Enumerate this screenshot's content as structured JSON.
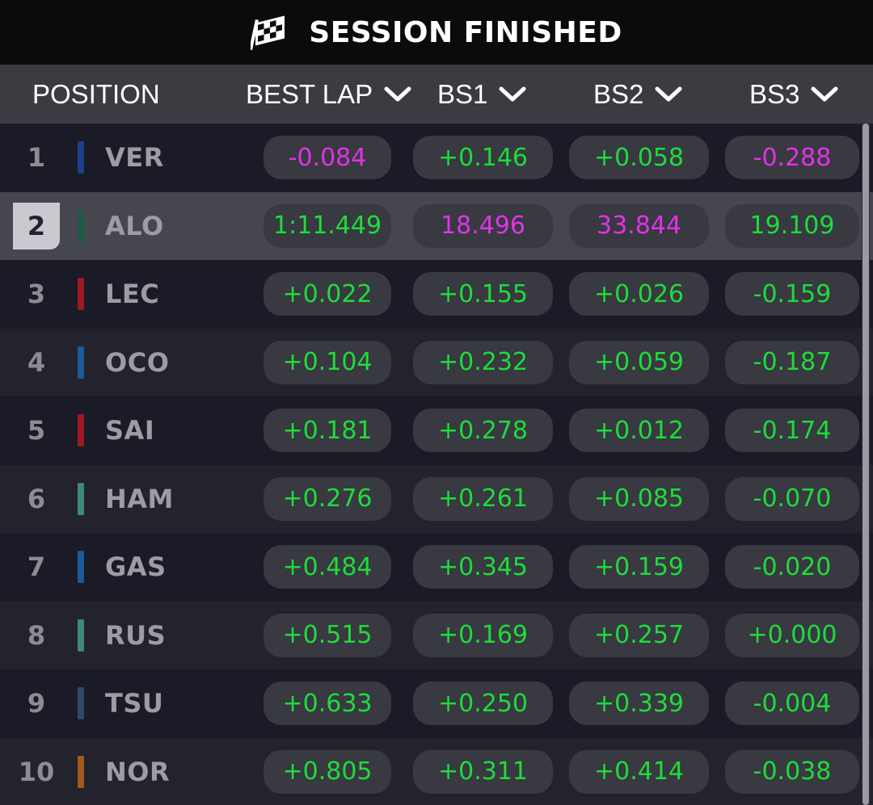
{
  "header": {
    "title": "SESSION FINISHED",
    "flag_icon": "checkered-flag-icon"
  },
  "columns": {
    "position": "POSITION",
    "best_lap": "BEST LAP",
    "bs1": "BS1",
    "bs2": "BS2",
    "bs3": "BS3"
  },
  "colors": {
    "green": "#1edc3a",
    "purple": "#e033e6",
    "selected_row": "#46464f"
  },
  "rows": [
    {
      "pos": "1",
      "driver": "VER",
      "team_color": "#1e3f8a",
      "best_lap": "-0.084",
      "bs1": "+0.146",
      "bs2": "+0.058",
      "bs3": "-0.288",
      "best_lap_color": "purple",
      "bs1_color": "green",
      "bs2_color": "green",
      "bs3_color": "purple"
    },
    {
      "pos": "2",
      "driver": "ALO",
      "team_color": "#1d5a45",
      "best_lap": "1:11.449",
      "bs1": "18.496",
      "bs2": "33.844",
      "bs3": "19.109",
      "best_lap_color": "green",
      "bs1_color": "purple",
      "bs2_color": "purple",
      "bs3_color": "green",
      "selected": true
    },
    {
      "pos": "3",
      "driver": "LEC",
      "team_color": "#a01822",
      "best_lap": "+0.022",
      "bs1": "+0.155",
      "bs2": "+0.026",
      "bs3": "-0.159",
      "best_lap_color": "green",
      "bs1_color": "green",
      "bs2_color": "green",
      "bs3_color": "green"
    },
    {
      "pos": "4",
      "driver": "OCO",
      "team_color": "#1e5a95",
      "best_lap": "+0.104",
      "bs1": "+0.232",
      "bs2": "+0.059",
      "bs3": "-0.187",
      "best_lap_color": "green",
      "bs1_color": "green",
      "bs2_color": "green",
      "bs3_color": "green"
    },
    {
      "pos": "5",
      "driver": "SAI",
      "team_color": "#a01822",
      "best_lap": "+0.181",
      "bs1": "+0.278",
      "bs2": "+0.012",
      "bs3": "-0.174",
      "best_lap_color": "green",
      "bs1_color": "green",
      "bs2_color": "green",
      "bs3_color": "green"
    },
    {
      "pos": "6",
      "driver": "HAM",
      "team_color": "#3f8a77",
      "best_lap": "+0.276",
      "bs1": "+0.261",
      "bs2": "+0.085",
      "bs3": "-0.070",
      "best_lap_color": "green",
      "bs1_color": "green",
      "bs2_color": "green",
      "bs3_color": "green"
    },
    {
      "pos": "7",
      "driver": "GAS",
      "team_color": "#1e5a95",
      "best_lap": "+0.484",
      "bs1": "+0.345",
      "bs2": "+0.159",
      "bs3": "-0.020",
      "best_lap_color": "green",
      "bs1_color": "green",
      "bs2_color": "green",
      "bs3_color": "green"
    },
    {
      "pos": "8",
      "driver": "RUS",
      "team_color": "#3f8a77",
      "best_lap": "+0.515",
      "bs1": "+0.169",
      "bs2": "+0.257",
      "bs3": "+0.000",
      "best_lap_color": "green",
      "bs1_color": "green",
      "bs2_color": "green",
      "bs3_color": "green"
    },
    {
      "pos": "9",
      "driver": "TSU",
      "team_color": "#2e4a66",
      "best_lap": "+0.633",
      "bs1": "+0.250",
      "bs2": "+0.339",
      "bs3": "-0.004",
      "best_lap_color": "green",
      "bs1_color": "green",
      "bs2_color": "green",
      "bs3_color": "green"
    },
    {
      "pos": "10",
      "driver": "NOR",
      "team_color": "#a35a1e",
      "best_lap": "+0.805",
      "bs1": "+0.311",
      "bs2": "+0.414",
      "bs3": "-0.038",
      "best_lap_color": "green",
      "bs1_color": "green",
      "bs2_color": "green",
      "bs3_color": "green"
    }
  ]
}
